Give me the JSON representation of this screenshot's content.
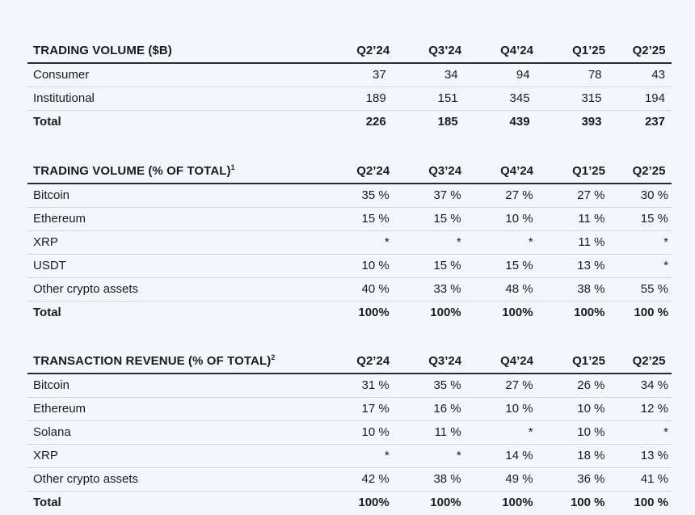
{
  "quarters": [
    "Q2’24",
    "Q3’24",
    "Q4’24",
    "Q1’25",
    "Q2’25"
  ],
  "trading_volume": {
    "title": "TRADING VOLUME ($B)",
    "rows": [
      {
        "label": "Consumer",
        "values": [
          "37",
          "34",
          "94",
          "78",
          "43"
        ]
      },
      {
        "label": "Institutional",
        "values": [
          "189",
          "151",
          "345",
          "315",
          "194"
        ]
      },
      {
        "label": "Total",
        "values": [
          "226",
          "185",
          "439",
          "393",
          "237"
        ]
      }
    ]
  },
  "trading_volume_pct": {
    "title": "TRADING VOLUME (% OF TOTAL)",
    "footnote": "1",
    "rows": [
      {
        "label": "Bitcoin",
        "values": [
          "35 %",
          "37 %",
          "27 %",
          "27 %",
          "30 %"
        ]
      },
      {
        "label": "Ethereum",
        "values": [
          "15 %",
          "15 %",
          "10 %",
          "11 %",
          "15 %"
        ]
      },
      {
        "label": "XRP",
        "values": [
          "*",
          "*",
          "*",
          "11 %",
          "*"
        ]
      },
      {
        "label": "USDT",
        "values": [
          "10 %",
          "15 %",
          "15 %",
          "13 %",
          "*"
        ]
      },
      {
        "label": "Other crypto assets",
        "values": [
          "40 %",
          "33 %",
          "48 %",
          "38 %",
          "55 %"
        ]
      },
      {
        "label": "Total",
        "values": [
          "100%",
          "100%",
          "100%",
          "100%",
          "100 %"
        ]
      }
    ]
  },
  "transaction_revenue_pct": {
    "title": "TRANSACTION REVENUE (% OF TOTAL)",
    "footnote": "2",
    "rows": [
      {
        "label": "Bitcoin",
        "values": [
          "31 %",
          "35 %",
          "27 %",
          "26 %",
          "34 %"
        ]
      },
      {
        "label": "Ethereum",
        "values": [
          "17 %",
          "16 %",
          "10 %",
          "10 %",
          "12 %"
        ]
      },
      {
        "label": "Solana",
        "values": [
          "10 %",
          "11 %",
          "*",
          "10 %",
          "*"
        ]
      },
      {
        "label": "XRP",
        "values": [
          "*",
          "*",
          "14 %",
          "18 %",
          "13 %"
        ]
      },
      {
        "label": "Other crypto assets",
        "values": [
          "42 %",
          "38 %",
          "49 %",
          "36 %",
          "41 %"
        ]
      },
      {
        "label": "Total",
        "values": [
          "100%",
          "100%",
          "100%",
          "100 %",
          "100 %"
        ]
      }
    ]
  }
}
